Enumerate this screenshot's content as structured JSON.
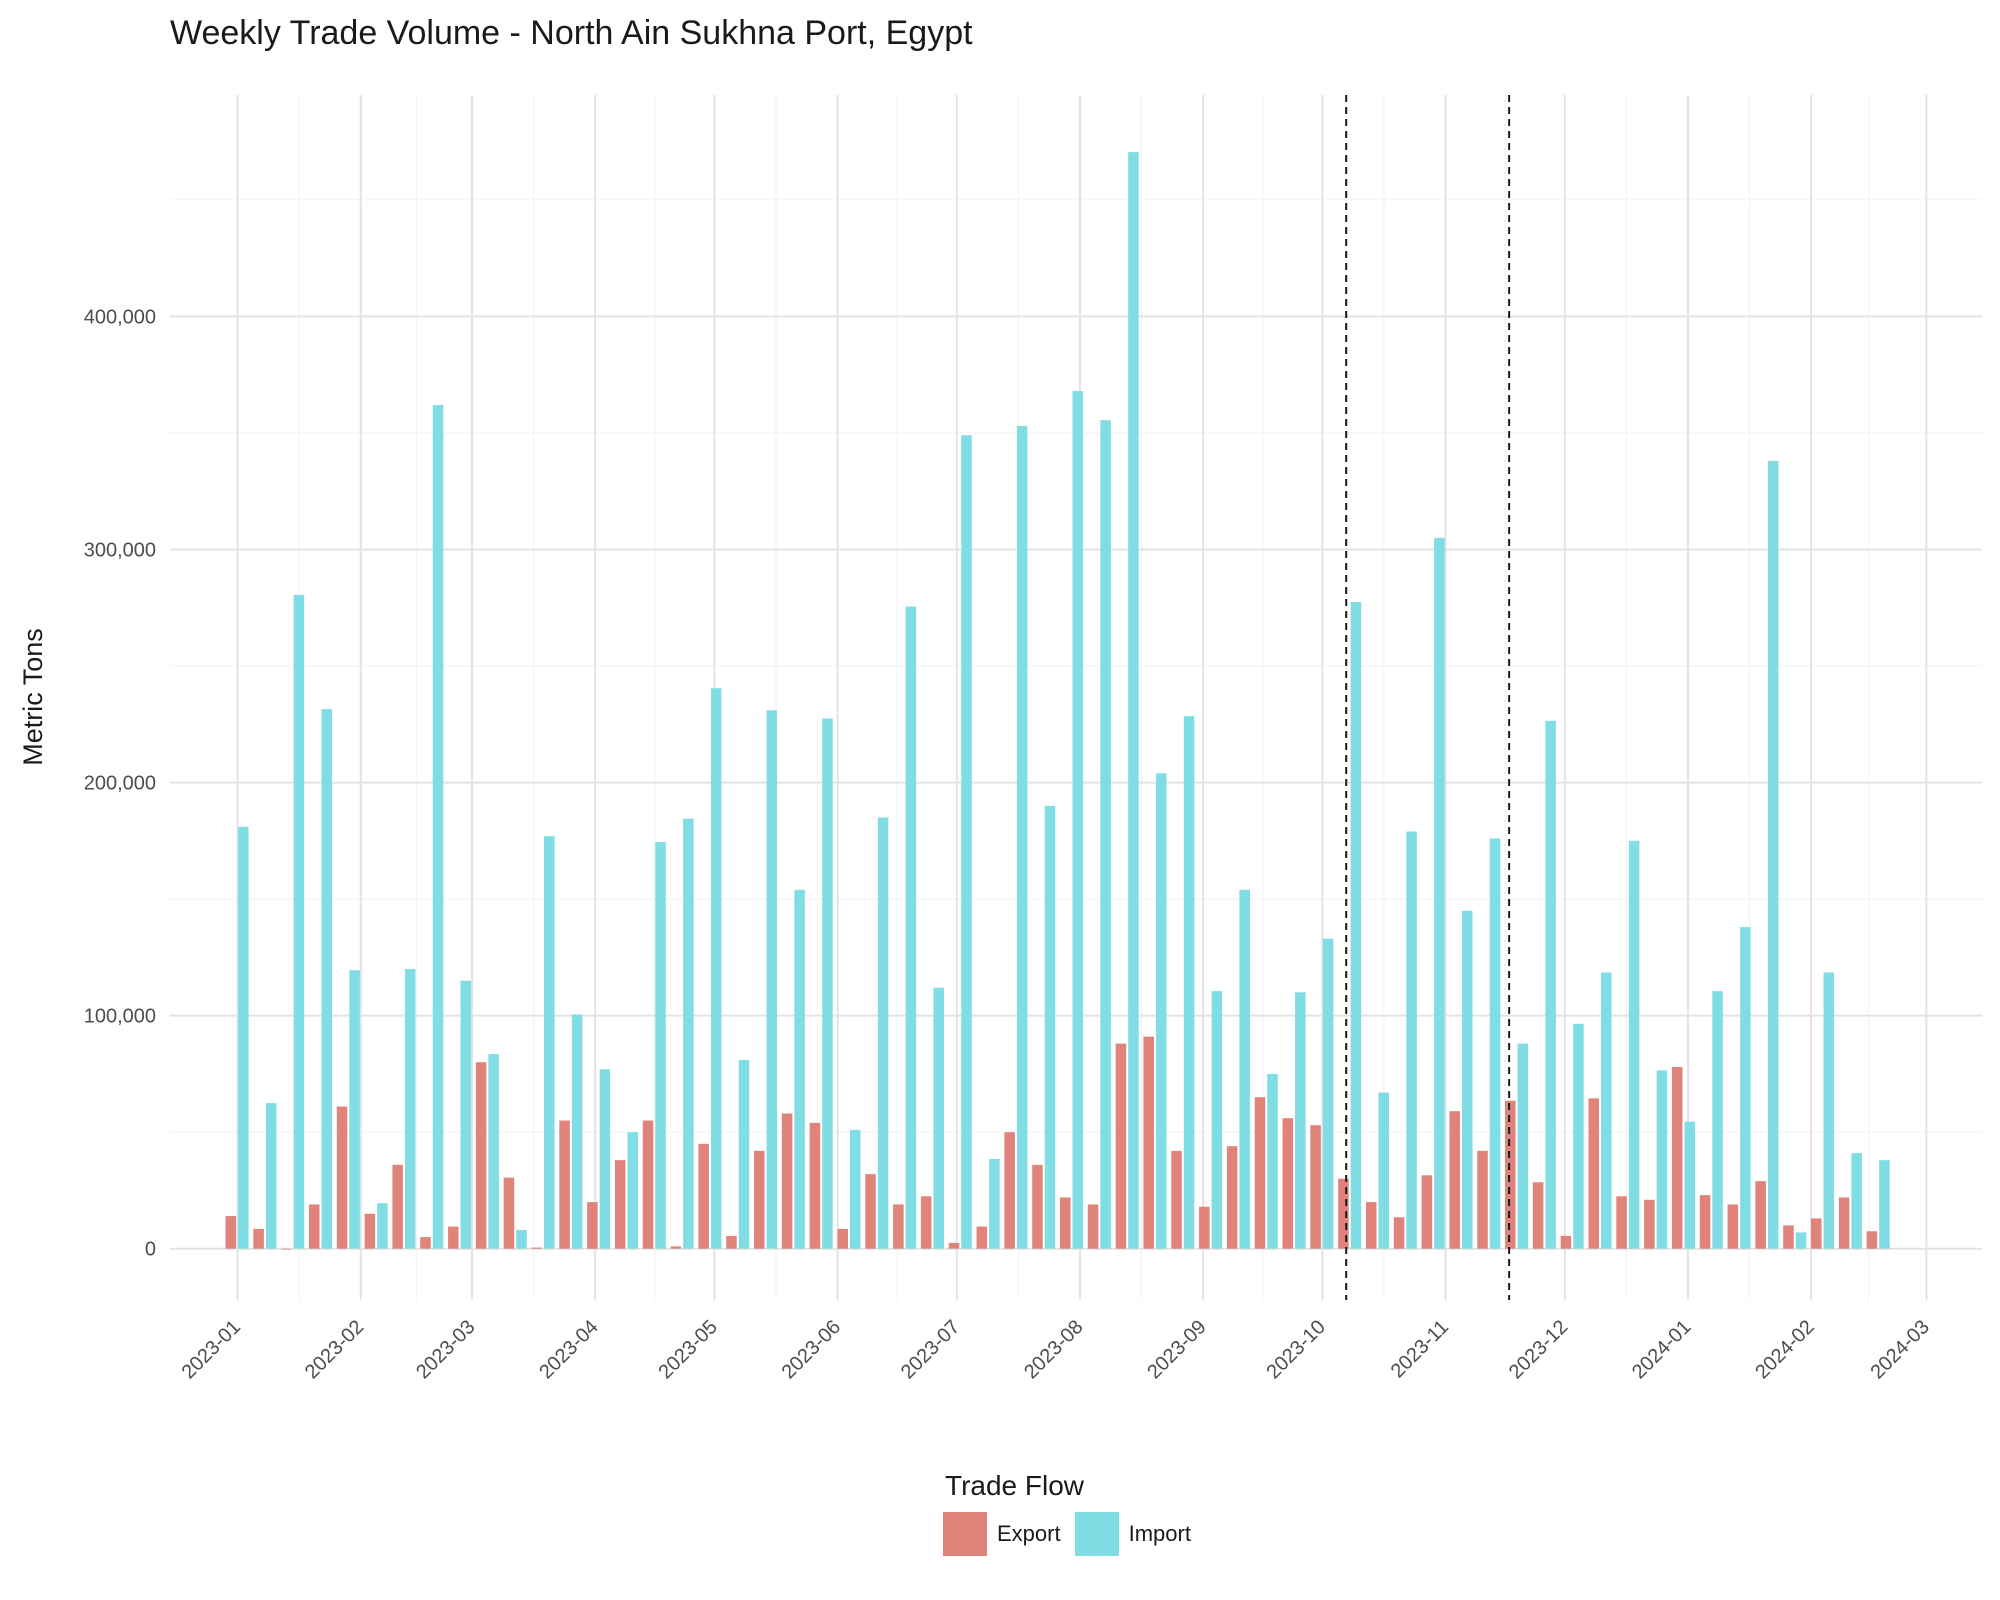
{
  "chart_data": {
    "type": "bar",
    "title": "Weekly Trade Volume - North Ain Sukhna Port, Egypt",
    "xlabel": "",
    "ylabel": "Metric Tons",
    "x_tick_labels": [
      "2023-01",
      "2023-02",
      "2023-03",
      "2023-04",
      "2023-05",
      "2023-06",
      "2023-07",
      "2023-08",
      "2023-09",
      "2023-10",
      "2023-11",
      "2023-12",
      "2024-01",
      "2024-02",
      "2024-03"
    ],
    "x_tick_dates": [
      "2023-01-01",
      "2023-02-01",
      "2023-03-01",
      "2023-04-01",
      "2023-05-01",
      "2023-06-01",
      "2023-07-01",
      "2023-08-01",
      "2023-09-01",
      "2023-10-01",
      "2023-11-01",
      "2023-12-01",
      "2024-01-01",
      "2024-02-01",
      "2024-03-01"
    ],
    "x_range": [
      "2022-12-15",
      "2024-03-15"
    ],
    "y_tick_labels": [
      "0",
      "100,000",
      "200,000",
      "300,000",
      "400,000"
    ],
    "y_ticks": [
      0,
      100000,
      200000,
      300000,
      400000
    ],
    "ylim": [
      -22000,
      495000
    ],
    "grid": true,
    "vlines": [
      "2023-10-07",
      "2023-11-17"
    ],
    "legend": {
      "title": "Trade Flow",
      "position": "bottom",
      "entries": [
        "Export",
        "Import"
      ]
    },
    "colors": {
      "Export": "#e0837b",
      "Import": "#7fdde3"
    },
    "week_starts": [
      "2023-01-01",
      "2023-01-08",
      "2023-01-15",
      "2023-01-22",
      "2023-01-29",
      "2023-02-05",
      "2023-02-12",
      "2023-02-19",
      "2023-02-26",
      "2023-03-05",
      "2023-03-12",
      "2023-03-19",
      "2023-03-26",
      "2023-04-02",
      "2023-04-09",
      "2023-04-16",
      "2023-04-23",
      "2023-04-30",
      "2023-05-07",
      "2023-05-14",
      "2023-05-21",
      "2023-05-28",
      "2023-06-04",
      "2023-06-11",
      "2023-06-18",
      "2023-06-25",
      "2023-07-02",
      "2023-07-09",
      "2023-07-16",
      "2023-07-23",
      "2023-07-30",
      "2023-08-06",
      "2023-08-13",
      "2023-08-20",
      "2023-08-27",
      "2023-09-03",
      "2023-09-10",
      "2023-09-17",
      "2023-09-24",
      "2023-10-01",
      "2023-10-08",
      "2023-10-15",
      "2023-10-22",
      "2023-10-29",
      "2023-11-05",
      "2023-11-12",
      "2023-11-19",
      "2023-11-26",
      "2023-12-03",
      "2023-12-10",
      "2023-12-17",
      "2023-12-24",
      "2023-12-31",
      "2024-01-07",
      "2024-01-14",
      "2024-01-21",
      "2024-01-28",
      "2024-02-04",
      "2024-02-11",
      "2024-02-18"
    ],
    "series": [
      {
        "name": "Export",
        "values": [
          14000,
          8500,
          0,
          19000,
          61000,
          15000,
          36000,
          5000,
          9500,
          80000,
          30500,
          500,
          55000,
          20000,
          38000,
          55000,
          1000,
          45000,
          5500,
          42000,
          58000,
          54000,
          8500,
          32000,
          19000,
          22500,
          2500,
          9500,
          50000,
          36000,
          22000,
          19000,
          88000,
          91000,
          42000,
          18000,
          44000,
          65000,
          56000,
          53000,
          30000,
          20000,
          13500,
          31500,
          59000,
          42000,
          63500,
          28500,
          5500,
          64500,
          22500,
          21000,
          78000,
          23000,
          19000,
          29000,
          10000,
          13000,
          22000,
          7500
        ]
      },
      {
        "name": "Import",
        "values": [
          181000,
          62500,
          280500,
          231500,
          119500,
          19500,
          120000,
          362000,
          115000,
          83500,
          8000,
          177000,
          100500,
          77000,
          50000,
          174500,
          184500,
          240500,
          81000,
          231000,
          154000,
          227500,
          51000,
          185000,
          275500,
          112000,
          349000,
          38500,
          353000,
          190000,
          368000,
          355500,
          470500,
          204000,
          228500,
          110500,
          154000,
          75000,
          110000,
          133000,
          277500,
          67000,
          179000,
          305000,
          145000,
          176000,
          88000,
          226500,
          96500,
          118500,
          175000,
          76500,
          54500,
          110500,
          138000,
          338000,
          7000,
          118500,
          41000,
          38000
        ]
      }
    ]
  }
}
